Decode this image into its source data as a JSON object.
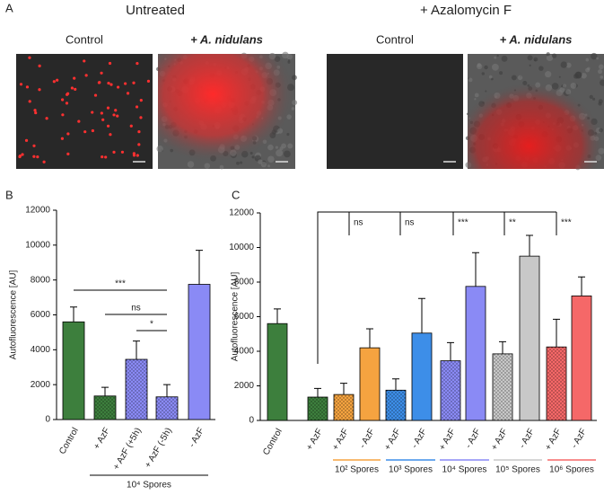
{
  "panel_labels": [
    "A",
    "B",
    "C"
  ],
  "panel_a": {
    "groups": [
      {
        "title": "Untreated",
        "images": [
          "Control",
          "+ A. nidulans"
        ]
      },
      {
        "title": "+ Azalomycin F",
        "images": [
          "Control",
          "+ A. nidulans"
        ]
      }
    ]
  },
  "chart_data": [
    {
      "type": "bar",
      "ylabel": "Autofluorescence [AU]",
      "categories": [
        "Control",
        "+ AzF",
        "+ AzF (+5h)",
        "+ AzF (-5h)",
        "- AzF"
      ],
      "values": [
        5600,
        1350,
        3450,
        1300,
        7750
      ],
      "errors": [
        850,
        500,
        1050,
        700,
        1950
      ],
      "colors": [
        "#3d7f3d",
        "#3d7f3d",
        "#8a8af5",
        "#8a8af5",
        "#8a8af5"
      ],
      "dotted": [
        false,
        true,
        true,
        true,
        false
      ],
      "ylim": [
        0,
        12000
      ],
      "yticks": [
        0,
        2000,
        4000,
        6000,
        8000,
        10000,
        12000
      ],
      "annotations": [
        "***",
        "ns",
        "*"
      ],
      "group_labels": [
        "10⁴ Spores"
      ],
      "group_colors": [
        "#000000"
      ]
    },
    {
      "type": "bar",
      "ylabel": "Autofluorescence [AU]",
      "categories": [
        "Control",
        "+ AzF",
        "+ AzF",
        "- AzF",
        "+ AzF",
        "- AzF",
        "+ AzF",
        "- AzF",
        "+ AzF",
        "- AzF",
        "+ AzF",
        "- AzF"
      ],
      "values": [
        5600,
        1350,
        1500,
        4200,
        1750,
        5050,
        3450,
        7750,
        3850,
        9500,
        4250,
        7200
      ],
      "errors": [
        850,
        500,
        650,
        1100,
        650,
        2000,
        1050,
        1950,
        700,
        1200,
        1600,
        1100
      ],
      "colors": [
        "#3d7f3d",
        "#3d7f3d",
        "#f5a340",
        "#f5a340",
        "#3d8ee8",
        "#3d8ee8",
        "#8a8af5",
        "#8a8af5",
        "#c8c8c8",
        "#c8c8c8",
        "#f56868",
        "#f56868"
      ],
      "dotted": [
        false,
        true,
        true,
        false,
        true,
        false,
        true,
        false,
        true,
        false,
        true,
        false
      ],
      "ylim": [
        0,
        12000
      ],
      "yticks": [
        0,
        2000,
        4000,
        6000,
        8000,
        10000,
        12000
      ],
      "annotations": [
        "ns",
        "ns",
        "***",
        "**",
        "***"
      ],
      "group_labels": [
        "10² Spores",
        "10³ Spores",
        "10⁴ Spores",
        "10⁵ Spores",
        "10⁶ Spores"
      ],
      "group_colors": [
        "#f5a340",
        "#3d8ee8",
        "#8a8af5",
        "#c8c8c8",
        "#f56868"
      ]
    }
  ]
}
